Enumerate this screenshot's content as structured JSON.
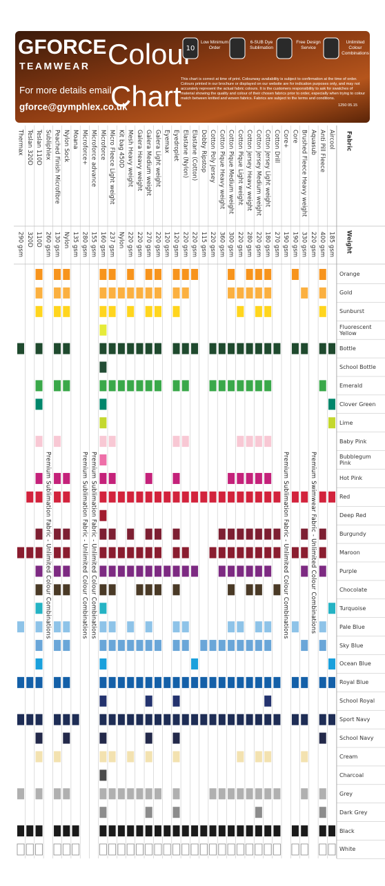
{
  "header": {
    "logo": "GFORCE",
    "sublogo": "TEAMWEAR",
    "title_1": "Colour",
    "title_2": "Chart",
    "contact_label": "For more details email",
    "email": "gforce@gymphlex.co.uk",
    "features": [
      {
        "badge": "10",
        "label": "Low Minimum Order"
      },
      {
        "badge": "",
        "label": "6-SUB Dye Sublimation"
      },
      {
        "badge": "",
        "label": "Free Design Service"
      },
      {
        "badge": "",
        "label": "Unlimited Colour Combinations"
      }
    ],
    "disclaimer": "This chart is correct at time of print. Colourway availability is subject to confirmation at the time of order. Colours printed in our brochure or displayed on our website are for indication purposes only, and may not accurately represent the actual fabric colours. It is the customers responsibility to ask for swatches of material showing the quality and colour of their chosen fabrics prior to order, especially when trying to colour match between knitted and woven fabrics. Fabrics are subject to the terms and conditions.",
    "reference": "1250 05.15"
  },
  "table": {
    "fabric_header": "Fabric",
    "weight_header": "Weight",
    "colours": [
      {
        "name": "Orange",
        "color": "#f7941d"
      },
      {
        "name": "Gold",
        "color": "#fbb040"
      },
      {
        "name": "Sunburst",
        "color": "#ffd51e"
      },
      {
        "name": "Fluorescent Yellow",
        "color": "#e6eb3a"
      },
      {
        "name": "Bottle",
        "color": "#1f4a2e"
      },
      {
        "name": "School Bottle",
        "color": "#234d35"
      },
      {
        "name": "Emerald",
        "color": "#3aa84a"
      },
      {
        "name": "Clover Green",
        "color": "#00866b"
      },
      {
        "name": "Lime",
        "color": "#c4d82e"
      },
      {
        "name": "Baby Pink",
        "color": "#f8c8d4"
      },
      {
        "name": "Bubblegum Pink",
        "color": "#ee6fa8"
      },
      {
        "name": "Hot Pink",
        "color": "#c4227a"
      },
      {
        "name": "Red",
        "color": "#d2233c"
      },
      {
        "name": "Deep Red",
        "color": "#a11c2f"
      },
      {
        "name": "Burgundy",
        "color": "#7d1f32"
      },
      {
        "name": "Maroon",
        "color": "#8a1d2f"
      },
      {
        "name": "Purple",
        "color": "#7d2a82"
      },
      {
        "name": "Chocolate",
        "color": "#4a3a26"
      },
      {
        "name": "Turquoise",
        "color": "#25b3c4"
      },
      {
        "name": "Pale Blue",
        "color": "#8ec3e8"
      },
      {
        "name": "Sky Blue",
        "color": "#6aa6d8"
      },
      {
        "name": "Ocean Blue",
        "color": "#1aa0dc"
      },
      {
        "name": "Royal Blue",
        "color": "#1460a8"
      },
      {
        "name": "School Royal",
        "color": "#24336e"
      },
      {
        "name": "Sport Navy",
        "color": "#1e2d55"
      },
      {
        "name": "School Navy",
        "color": "#23294a"
      },
      {
        "name": "Cream",
        "color": "#f3e2b0"
      },
      {
        "name": "Charcoal",
        "color": "#4b4b4b"
      },
      {
        "name": "Grey",
        "color": "#b0b0b0"
      },
      {
        "name": "Dark Grey",
        "color": "#8c8c8c"
      },
      {
        "name": "Black",
        "color": "#1a1a1a"
      },
      {
        "name": "White",
        "color": "#ffffff"
      }
    ],
    "fabrics": [
      {
        "name": "Aircool",
        "weight": "185 gsm",
        "available": [
          4,
          7,
          8,
          12,
          18,
          21,
          22,
          24,
          30,
          31
        ]
      },
      {
        "name": "Anti Pill Fleece",
        "weight": "400 gsm",
        "available": [
          0,
          1,
          2,
          4,
          6,
          12,
          14,
          15,
          16,
          19,
          20,
          22,
          24,
          25,
          28,
          29,
          30,
          31
        ]
      },
      {
        "name": "Aquasub",
        "weight": "220 gsm",
        "note": "Premium Swimwear Fabric - Unlimited Colour Combinations"
      },
      {
        "name": "Brushed Fleece Heavy weight",
        "weight": "330 gsm",
        "available": [
          1,
          4,
          12,
          14,
          15,
          16,
          20,
          22,
          24,
          26,
          28,
          30,
          31
        ]
      },
      {
        "name": "Core",
        "weight": "190 gsm",
        "available": [
          0,
          4,
          12,
          15,
          19,
          22,
          24,
          30,
          31
        ]
      },
      {
        "name": "Core+",
        "weight": "190 gsm",
        "note": "Premium Sublimation Fabric - Unlimited Colour Combinations"
      },
      {
        "name": "Cotton Drill",
        "weight": "270 gsm",
        "available": [
          4,
          12,
          14,
          15,
          17,
          22,
          24,
          28,
          30,
          31
        ]
      },
      {
        "name": "Cotton Jersey Light weight",
        "weight": "180 gsm",
        "available": [
          0,
          1,
          2,
          4,
          6,
          9,
          11,
          12,
          14,
          15,
          16,
          19,
          20,
          22,
          23,
          24,
          26,
          28,
          30,
          31
        ]
      },
      {
        "name": "Cotton Jersey Medium weight",
        "weight": "220 gsm",
        "available": [
          0,
          1,
          2,
          4,
          6,
          9,
          11,
          12,
          14,
          15,
          16,
          17,
          19,
          20,
          22,
          24,
          26,
          28,
          29,
          30,
          31
        ]
      },
      {
        "name": "Cotton Jersey Heavy weight",
        "weight": "280 gsm",
        "available": [
          0,
          1,
          4,
          6,
          9,
          11,
          12,
          14,
          15,
          16,
          17,
          20,
          22,
          24,
          28,
          30,
          31
        ]
      },
      {
        "name": "Cotton Pique Light weight",
        "weight": "220 gsm",
        "available": [
          1,
          2,
          4,
          6,
          9,
          11,
          12,
          14,
          15,
          16,
          19,
          20,
          22,
          24,
          26,
          28,
          30,
          31
        ]
      },
      {
        "name": "Cotton Pique Medium weight",
        "weight": "300 gsm",
        "available": [
          0,
          1,
          4,
          6,
          11,
          12,
          14,
          15,
          16,
          17,
          19,
          20,
          22,
          24,
          28,
          30,
          31
        ]
      },
      {
        "name": "Cotton Pique Heavy weight",
        "weight": "360 gsm",
        "available": [
          4,
          6,
          12,
          14,
          15,
          16,
          20,
          22,
          24,
          28,
          30,
          31
        ]
      },
      {
        "name": "Cotton Poly Jersey",
        "weight": "220 gsm",
        "available": [
          4,
          6,
          12,
          15,
          20,
          22,
          24,
          28,
          30,
          31
        ]
      },
      {
        "name": "Dobby Ripstop",
        "weight": "115 gsm",
        "available": [
          12,
          20,
          22,
          24,
          30,
          31
        ]
      },
      {
        "name": "Elastane (Cotton)",
        "weight": "220 gsm",
        "available": [
          0,
          4,
          12,
          16,
          21,
          22,
          24,
          30,
          31
        ]
      },
      {
        "name": "Elastane (Nylon)",
        "weight": "220 gsm",
        "available": [
          0,
          1,
          4,
          6,
          9,
          12,
          15,
          16,
          19,
          20,
          22,
          24,
          30,
          31
        ]
      },
      {
        "name": "Eyedroplet",
        "weight": "120 gsm",
        "available": [
          0,
          1,
          2,
          4,
          6,
          9,
          11,
          12,
          14,
          15,
          16,
          17,
          19,
          20,
          22,
          23,
          24,
          25,
          26,
          28,
          29,
          30,
          31
        ]
      },
      {
        "name": "Eyemax",
        "weight": "120 gsm",
        "available": [
          12,
          16,
          22,
          24,
          30,
          31
        ]
      },
      {
        "name": "Galera Light weight",
        "weight": "220 gsm",
        "available": [
          0,
          1,
          2,
          4,
          6,
          12,
          14,
          15,
          16,
          17,
          20,
          22,
          24,
          28,
          30,
          31
        ]
      },
      {
        "name": "Galera Medium weight",
        "weight": "270 gsm",
        "available": [
          0,
          1,
          2,
          4,
          6,
          11,
          12,
          14,
          15,
          16,
          17,
          19,
          20,
          22,
          23,
          24,
          25,
          26,
          28,
          29,
          30,
          31
        ]
      },
      {
        "name": "Galera Heavy weight",
        "weight": "220 gsm",
        "available": [
          1,
          4,
          6,
          12,
          15,
          16,
          17,
          20,
          22,
          24,
          28,
          30,
          31
        ]
      },
      {
        "name": "Mesh Heavy weight",
        "weight": "220 gsm",
        "available": [
          0,
          1,
          2,
          4,
          6,
          12,
          14,
          15,
          16,
          19,
          20,
          22,
          24,
          26,
          28,
          30,
          31
        ]
      },
      {
        "name": "Kit bag 450D",
        "weight": "Nylon",
        "available": [
          1,
          4,
          6,
          12,
          15,
          16,
          20,
          22,
          24,
          28,
          30,
          31
        ]
      },
      {
        "name": "Micro Fleece Light weight",
        "weight": "237 gsm",
        "available": [
          0,
          1,
          2,
          4,
          6,
          9,
          11,
          12,
          14,
          15,
          16,
          17,
          19,
          20,
          22,
          24,
          26,
          28,
          30,
          31
        ]
      },
      {
        "name": "Microforce",
        "weight": "160 gsm",
        "available": [
          0,
          1,
          2,
          3,
          4,
          5,
          6,
          7,
          8,
          9,
          10,
          11,
          12,
          13,
          14,
          15,
          16,
          17,
          18,
          19,
          20,
          21,
          22,
          23,
          24,
          25,
          26,
          27,
          28,
          29,
          30,
          31
        ]
      },
      {
        "name": "Microforce advance",
        "weight": "155 gsm",
        "note": "Premium Sublimation Fabric - Unlimited Colour Combinations"
      },
      {
        "name": "Microforce+",
        "weight": "280 gsm",
        "note": "Premium Sublimation Fabric - Unlimited Colour Combinations"
      },
      {
        "name": "Moana",
        "weight": "135 gsm",
        "available": [
          24,
          30,
          31
        ]
      },
      {
        "name": "Nylon Sock",
        "weight": "Nylon",
        "available": [
          0,
          1,
          2,
          4,
          6,
          11,
          12,
          14,
          15,
          16,
          17,
          19,
          20,
          22,
          24,
          25,
          28,
          30,
          31
        ]
      },
      {
        "name": "Peached Finish Microfibre",
        "weight": "130 gsm",
        "available": [
          0,
          1,
          2,
          4,
          6,
          9,
          11,
          12,
          14,
          15,
          16,
          17,
          19,
          20,
          22,
          24,
          26,
          28,
          30,
          31
        ]
      },
      {
        "name": "Subliphlex",
        "weight": "260 gsm",
        "note": "Premium Sublimation Fabric - Unlimited Colour Combinations"
      },
      {
        "name": "Teslan 110D",
        "weight": "110D",
        "available": [
          0,
          1,
          2,
          4,
          6,
          7,
          9,
          11,
          12,
          14,
          15,
          16,
          17,
          18,
          19,
          20,
          21,
          22,
          24,
          25,
          26,
          28,
          30,
          31
        ]
      },
      {
        "name": "Teslan 320D",
        "weight": "320D",
        "available": [
          12,
          15,
          22,
          24,
          30,
          31
        ]
      },
      {
        "name": "Thermax",
        "weight": "290 gsm",
        "available": [
          4,
          15,
          19,
          22,
          24,
          28,
          30,
          31
        ]
      }
    ]
  }
}
